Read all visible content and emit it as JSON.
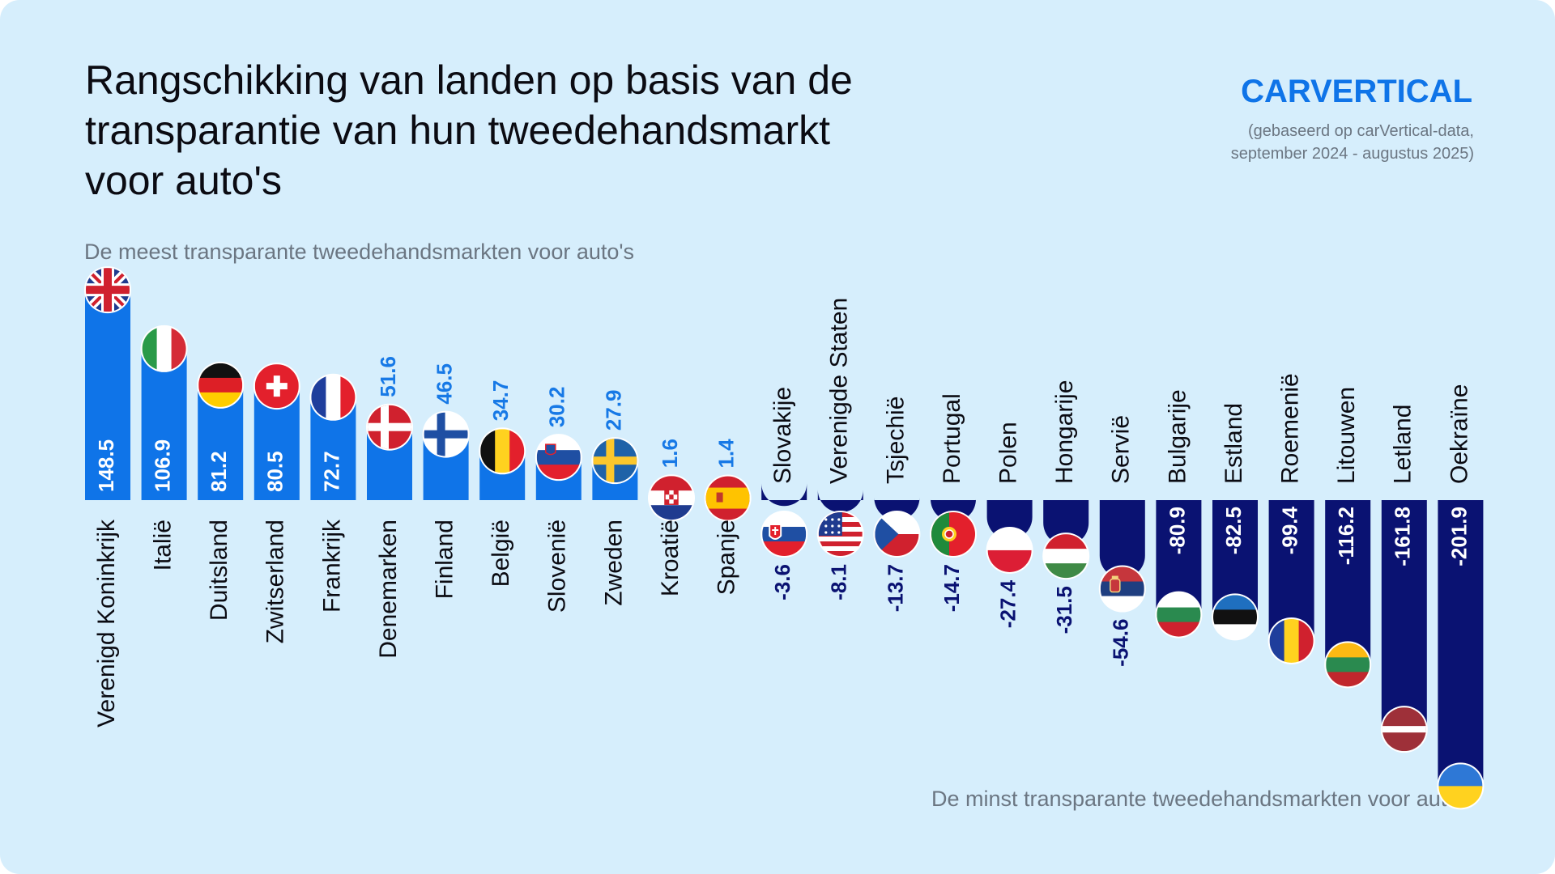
{
  "header": {
    "title": "Rangschikking van landen op basis van de\ntransparantie van hun tweedehandsmarkt\nvoor auto's",
    "logo_text": "CARVERTICAL",
    "source": "(gebaseerd op carVertical-data,\nseptember 2024 - augustus 2025)"
  },
  "labels": {
    "top": "De meest transparante tweedehandsmarkten voor auto's",
    "bottom": "De minst transparante tweedehandsmarkten voor auto's"
  },
  "colors": {
    "background": "#d6eefc",
    "positive": "#0f74e8",
    "negative": "#0a1272",
    "positive_value_outside": "#1779e6",
    "text": "#0b0b12",
    "muted": "#6b7682"
  },
  "chart_data": {
    "type": "bar",
    "categories": [
      "Verenigd Koninkrijk",
      "Italië",
      "Duitsland",
      "Zwitserland",
      "Frankrijk",
      "Denemarken",
      "Finland",
      "België",
      "Slovenië",
      "Zweden",
      "Kroatië",
      "Spanje",
      "Slovakije",
      "Verenigde Staten",
      "Tsjechië",
      "Portugal",
      "Polen",
      "Hongarije",
      "Servië",
      "Bulgarije",
      "Estland",
      "Roemenië",
      "Litouwen",
      "Letland",
      "Oekraïne"
    ],
    "values": [
      148.5,
      106.9,
      81.2,
      80.5,
      72.7,
      51.6,
      46.5,
      34.7,
      30.2,
      27.9,
      1.6,
      1.4,
      -3.6,
      -8.1,
      -13.7,
      -14.7,
      -27.4,
      -31.5,
      -54.6,
      -80.9,
      -82.5,
      -99.4,
      -116.2,
      -161.8,
      -201.9
    ],
    "value_labels": [
      "148.5",
      "106.9",
      "81.2",
      "80.5",
      "72.7",
      "51.6",
      "46.5",
      "34.7",
      "30.2",
      "27.9",
      "1.6",
      "1.4",
      "-3.6",
      "-8.1",
      "-13.7",
      "-14.7",
      "-27.4",
      "-31.5",
      "-54.6",
      "-80.9",
      "-82.5",
      "-99.4",
      "-116.2",
      "-161.8",
      "-201.9"
    ],
    "flags": [
      "uk-flag-icon",
      "italy-flag-icon",
      "germany-flag-icon",
      "switzerland-flag-icon",
      "france-flag-icon",
      "denmark-flag-icon",
      "finland-flag-icon",
      "belgium-flag-icon",
      "slovenia-flag-icon",
      "sweden-flag-icon",
      "croatia-flag-icon",
      "spain-flag-icon",
      "slovakia-flag-icon",
      "usa-flag-icon",
      "czechia-flag-icon",
      "portugal-flag-icon",
      "poland-flag-icon",
      "hungary-flag-icon",
      "serbia-flag-icon",
      "bulgaria-flag-icon",
      "estonia-flag-icon",
      "romania-flag-icon",
      "lithuania-flag-icon",
      "latvia-flag-icon",
      "ukraine-flag-icon"
    ],
    "xlabel": "",
    "ylabel": "",
    "grid": false,
    "legend": "none"
  }
}
